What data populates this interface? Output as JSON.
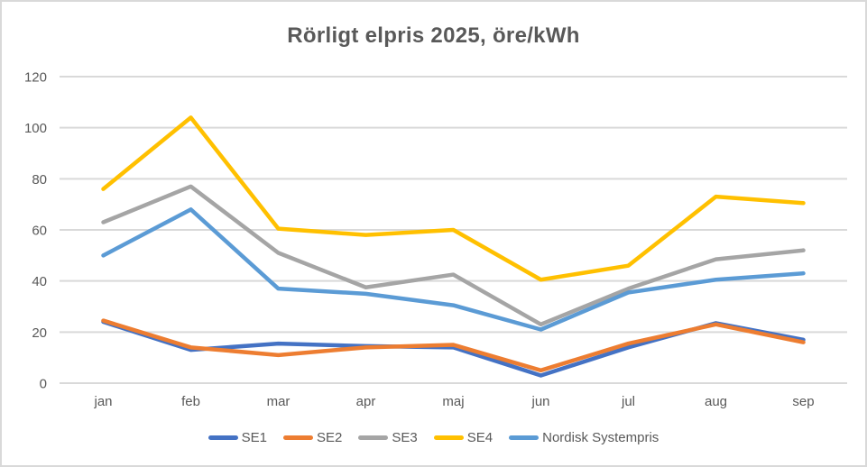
{
  "chart_data": {
    "type": "line",
    "title": "Rörligt elpris 2025, öre/kWh",
    "categories": [
      "jan",
      "feb",
      "mar",
      "apr",
      "maj",
      "jun",
      "jul",
      "aug",
      "sep"
    ],
    "series": [
      {
        "name": "SE1",
        "color": "#4472C4",
        "values": [
          24,
          13,
          15.5,
          14.5,
          14,
          3,
          14,
          23.5,
          17
        ]
      },
      {
        "name": "SE2",
        "color": "#ED7D31",
        "values": [
          24.5,
          14,
          11,
          14,
          15,
          5,
          15.5,
          23,
          16
        ]
      },
      {
        "name": "SE3",
        "color": "#A5A5A5",
        "values": [
          63,
          77,
          51,
          37.5,
          42.5,
          23,
          37,
          48.5,
          52
        ]
      },
      {
        "name": "SE4",
        "color": "#FFC000",
        "values": [
          76,
          104,
          60.5,
          58,
          60,
          40.5,
          46,
          73,
          70.5
        ]
      },
      {
        "name": "Nordisk Systempris",
        "color": "#5B9BD5",
        "values": [
          50,
          68,
          37,
          35,
          30.5,
          21,
          35.5,
          40.5,
          43
        ]
      }
    ],
    "ylim": [
      0,
      120
    ],
    "yticks": [
      0,
      20,
      40,
      60,
      80,
      100,
      120
    ],
    "xlabel": "",
    "ylabel": "",
    "grid": "horizontal",
    "legend_position": "bottom"
  },
  "styles": {
    "title_color": "#595959",
    "axis_label_color": "#595959",
    "gridline_color": "#D9D9D9",
    "frame_border_color": "#D9D9D9",
    "background": "#FFFFFF"
  }
}
